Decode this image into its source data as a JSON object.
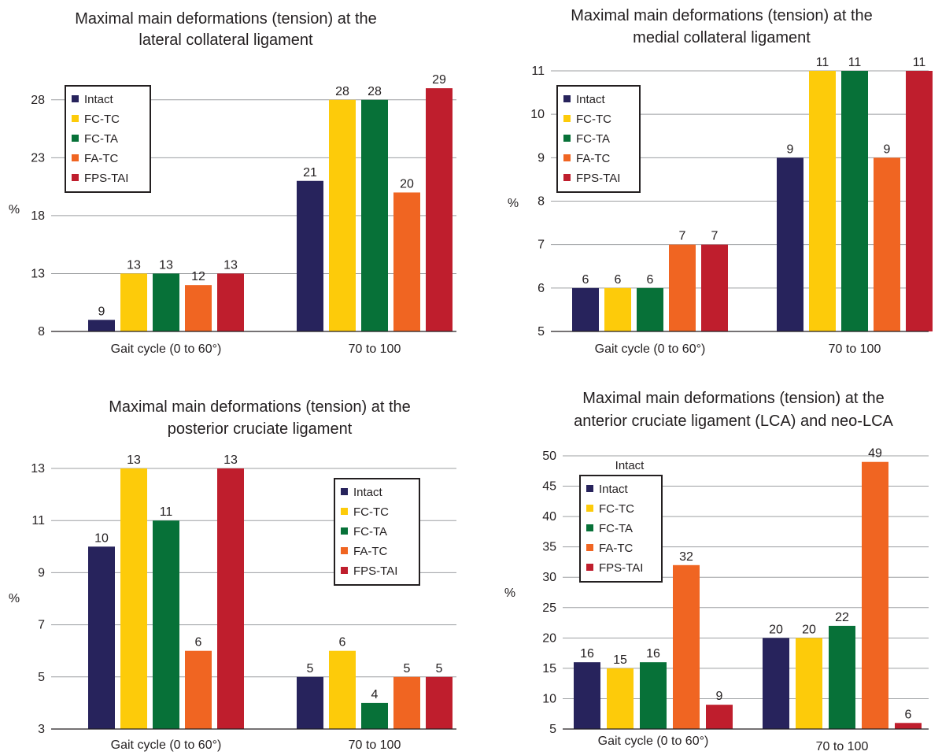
{
  "colors": {
    "Intact": "#27235c",
    "FC-TC": "#fdcb0a",
    "FC-TA": "#077138",
    "FA-TC": "#f06522",
    "FPS-TAI": "#bf1e2d",
    "grid": "#9d9fa2",
    "text": "#231f20"
  },
  "chart_data": [
    {
      "type": "bar",
      "title": [
        "Maximal main deformations (tension) at the",
        "lateral collateral ligament"
      ],
      "ylabel": "%",
      "categories": [
        "Gait cycle (0 to 60°)",
        "70 to 100"
      ],
      "ylim": [
        8,
        30.5
      ],
      "yticks": [
        8,
        13,
        18,
        23,
        28
      ],
      "grid": true,
      "legend_position": "top-left",
      "series": [
        {
          "name": "Intact",
          "values": [
            9,
            21
          ]
        },
        {
          "name": "FC-TC",
          "values": [
            13,
            28
          ]
        },
        {
          "name": "FC-TA",
          "values": [
            13,
            28
          ]
        },
        {
          "name": "FA-TC",
          "values": [
            12,
            20
          ]
        },
        {
          "name": "FPS-TAI",
          "values": [
            13,
            29
          ]
        }
      ]
    },
    {
      "type": "bar",
      "title": [
        "Maximal main deformations (tension) at the",
        "medial collateral ligament"
      ],
      "ylabel": "%",
      "categories": [
        "Gait cycle (0 to 60°)",
        "70 to 100"
      ],
      "ylim": [
        5,
        11
      ],
      "yticks": [
        5,
        6,
        7,
        8,
        9,
        10,
        11
      ],
      "grid": true,
      "legend_position": "top-left",
      "series": [
        {
          "name": "Intact",
          "values": [
            6,
            9
          ]
        },
        {
          "name": "FC-TC",
          "values": [
            6,
            11
          ]
        },
        {
          "name": "FC-TA",
          "values": [
            6,
            11
          ]
        },
        {
          "name": "FA-TC",
          "values": [
            7,
            9
          ]
        },
        {
          "name": "FPS-TAI",
          "values": [
            7,
            11
          ]
        }
      ]
    },
    {
      "type": "bar",
      "title": [
        "Maximal main deformations (tension) at the",
        "posterior cruciate ligament"
      ],
      "ylabel": "%",
      "categories": [
        "Gait cycle (0 to 60°)",
        "70 to 100"
      ],
      "ylim": [
        3,
        13
      ],
      "yticks": [
        3,
        5,
        7,
        9,
        11,
        13
      ],
      "grid": true,
      "legend_position": "top-right",
      "series": [
        {
          "name": "Intact",
          "values": [
            10,
            5
          ]
        },
        {
          "name": "FC-TC",
          "values": [
            13,
            6
          ]
        },
        {
          "name": "FC-TA",
          "values": [
            11,
            4
          ]
        },
        {
          "name": "FA-TC",
          "values": [
            6,
            5
          ]
        },
        {
          "name": "FPS-TAI",
          "values": [
            13,
            5
          ]
        }
      ]
    },
    {
      "type": "bar",
      "title": [
        "Maximal main deformations (tension) at the",
        "anterior cruciate ligament (LCA) and neo-LCA"
      ],
      "ylabel": "%",
      "categories": [
        "Gait cycle (0 to 60°)",
        "70 to 100"
      ],
      "ylim": [
        5,
        50
      ],
      "yticks": [
        5,
        10,
        15,
        20,
        25,
        30,
        35,
        40,
        45,
        50
      ],
      "grid": true,
      "legend_position": "top-left",
      "legend_note": "Intact",
      "series": [
        {
          "name": "Intact",
          "values": [
            16,
            20
          ]
        },
        {
          "name": "FC-TC",
          "values": [
            15,
            20
          ]
        },
        {
          "name": "FC-TA",
          "values": [
            16,
            22
          ]
        },
        {
          "name": "FA-TC",
          "values": [
            32,
            49
          ]
        },
        {
          "name": "FPS-TAI",
          "values": [
            9,
            6
          ]
        }
      ]
    }
  ]
}
